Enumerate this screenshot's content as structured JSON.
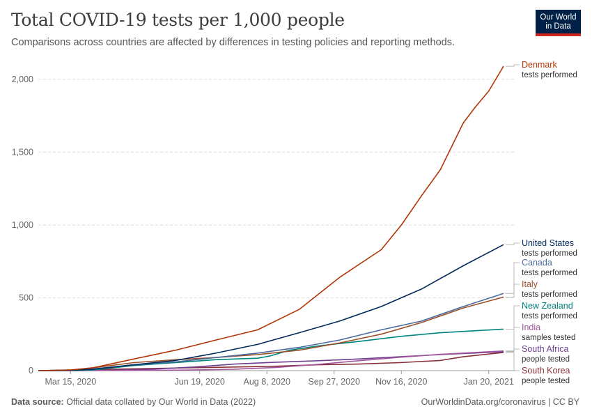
{
  "header": {
    "title": "Total COVID-19 tests per 1,000 people",
    "subtitle": "Comparisons across countries are affected by differences in testing policies and reporting methods."
  },
  "logo": {
    "line1": "Our World",
    "line2": "in Data"
  },
  "footer": {
    "source_label": "Data source:",
    "source_text": " Official data collated by Our World in Data (2022)",
    "right": "OurWorldinData.org/coronavirus | CC BY"
  },
  "colors": {
    "background": "#ffffff",
    "grid": "#dddddd",
    "logo": "#002147"
  },
  "chart_data": {
    "type": "line",
    "title": "Total COVID-19 tests per 1,000 people",
    "subtitle": "Comparisons across countries are affected by differences in testing policies and reporting methods.",
    "x_range": [
      "2020-02-20",
      "2021-01-31"
    ],
    "ylim": [
      0,
      2100
    ],
    "y_ticks": [
      0,
      500,
      1000,
      1500,
      2000
    ],
    "y_tick_labels": [
      "0",
      "500",
      "1,000",
      "1,500",
      "2,000"
    ],
    "x_ticks": [
      "2020-03-15",
      "2020-06-19",
      "2020-08-08",
      "2020-09-27",
      "2020-11-16",
      "2021-01-20"
    ],
    "x_tick_labels": [
      "Mar 15, 2020",
      "Jun 19, 2020",
      "Aug 8, 2020",
      "Sep 27, 2020",
      "Nov 16, 2020",
      "Jan 20, 2021"
    ],
    "grid": "horizontal dashed",
    "legend": "right, labels at line ends",
    "series": [
      {
        "name": "Denmark",
        "sublabel": "tests performed",
        "color": "#b13507",
        "x": [
          "2020-02-20",
          "2020-03-15",
          "2020-04-01",
          "2020-05-01",
          "2020-06-01",
          "2020-07-01",
          "2020-08-01",
          "2020-09-01",
          "2020-10-01",
          "2020-11-01",
          "2020-11-16",
          "2020-12-01",
          "2020-12-15",
          "2021-01-01",
          "2021-01-10",
          "2021-01-20",
          "2021-01-31"
        ],
        "y": [
          0,
          5,
          20,
          80,
          140,
          210,
          280,
          420,
          640,
          830,
          1000,
          1200,
          1380,
          1700,
          1810,
          1920,
          2090
        ]
      },
      {
        "name": "United States",
        "sublabel": "tests performed",
        "color": "#00295b",
        "x": [
          "2020-02-20",
          "2020-03-15",
          "2020-04-01",
          "2020-05-01",
          "2020-06-01",
          "2020-07-01",
          "2020-08-01",
          "2020-09-01",
          "2020-10-01",
          "2020-11-01",
          "2020-12-01",
          "2021-01-01",
          "2021-01-31"
        ],
        "y": [
          0,
          2,
          10,
          40,
          70,
          120,
          180,
          260,
          340,
          440,
          560,
          720,
          865
        ]
      },
      {
        "name": "Canada",
        "sublabel": "tests performed",
        "color": "#4c6a9c",
        "x": [
          "2020-02-20",
          "2020-03-15",
          "2020-04-01",
          "2020-05-01",
          "2020-06-01",
          "2020-07-01",
          "2020-08-01",
          "2020-09-01",
          "2020-10-01",
          "2020-11-01",
          "2020-12-01",
          "2021-01-01",
          "2021-01-31"
        ],
        "y": [
          0,
          3,
          12,
          40,
          60,
          90,
          120,
          160,
          210,
          280,
          340,
          440,
          530
        ]
      },
      {
        "name": "Italy",
        "sublabel": "tests performed",
        "color": "#9a5129",
        "x": [
          "2020-02-20",
          "2020-03-15",
          "2020-04-01",
          "2020-05-01",
          "2020-06-01",
          "2020-07-01",
          "2020-08-01",
          "2020-09-01",
          "2020-10-01",
          "2020-11-01",
          "2020-12-01",
          "2021-01-01",
          "2021-01-31"
        ],
        "y": [
          0,
          3,
          20,
          55,
          75,
          90,
          110,
          140,
          190,
          250,
          330,
          430,
          505
        ]
      },
      {
        "name": "New Zealand",
        "sublabel": "tests performed",
        "color": "#00847e",
        "x": [
          "2020-02-20",
          "2020-03-15",
          "2020-04-01",
          "2020-05-01",
          "2020-06-01",
          "2020-07-01",
          "2020-08-01",
          "2020-08-10",
          "2020-08-25",
          "2020-09-15",
          "2020-10-15",
          "2020-11-15",
          "2020-12-15",
          "2021-01-31"
        ],
        "y": [
          0,
          1,
          5,
          35,
          55,
          75,
          85,
          100,
          140,
          170,
          200,
          235,
          260,
          285
        ]
      },
      {
        "name": "India",
        "sublabel": "samples tested",
        "color": "#a2559c",
        "x": [
          "2020-02-20",
          "2020-03-15",
          "2020-04-15",
          "2020-05-15",
          "2020-06-15",
          "2020-07-15",
          "2020-08-15",
          "2020-09-15",
          "2020-10-15",
          "2020-11-15",
          "2020-12-15",
          "2021-01-31"
        ],
        "y": [
          0,
          0,
          1,
          2,
          5,
          10,
          22,
          43,
          68,
          92,
          112,
          135
        ]
      },
      {
        "name": "South Africa",
        "sublabel": "people tested",
        "color": "#6d3e91",
        "x": [
          "2020-02-20",
          "2020-03-15",
          "2020-04-15",
          "2020-05-15",
          "2020-06-15",
          "2020-07-15",
          "2020-08-15",
          "2020-09-15",
          "2020-10-15",
          "2020-11-15",
          "2020-12-15",
          "2021-01-31"
        ],
        "y": [
          0,
          0,
          3,
          10,
          25,
          45,
          58,
          68,
          80,
          95,
          110,
          130
        ]
      },
      {
        "name": "South Korea",
        "sublabel": "people tested",
        "color": "#883039",
        "x": [
          "2020-02-20",
          "2020-03-15",
          "2020-04-15",
          "2020-05-15",
          "2020-06-15",
          "2020-07-15",
          "2020-08-15",
          "2020-09-15",
          "2020-10-15",
          "2020-11-15",
          "2020-12-15",
          "2021-01-01",
          "2021-01-31"
        ],
        "y": [
          0,
          5,
          10,
          15,
          20,
          25,
          30,
          40,
          45,
          55,
          70,
          95,
          125
        ]
      }
    ]
  }
}
